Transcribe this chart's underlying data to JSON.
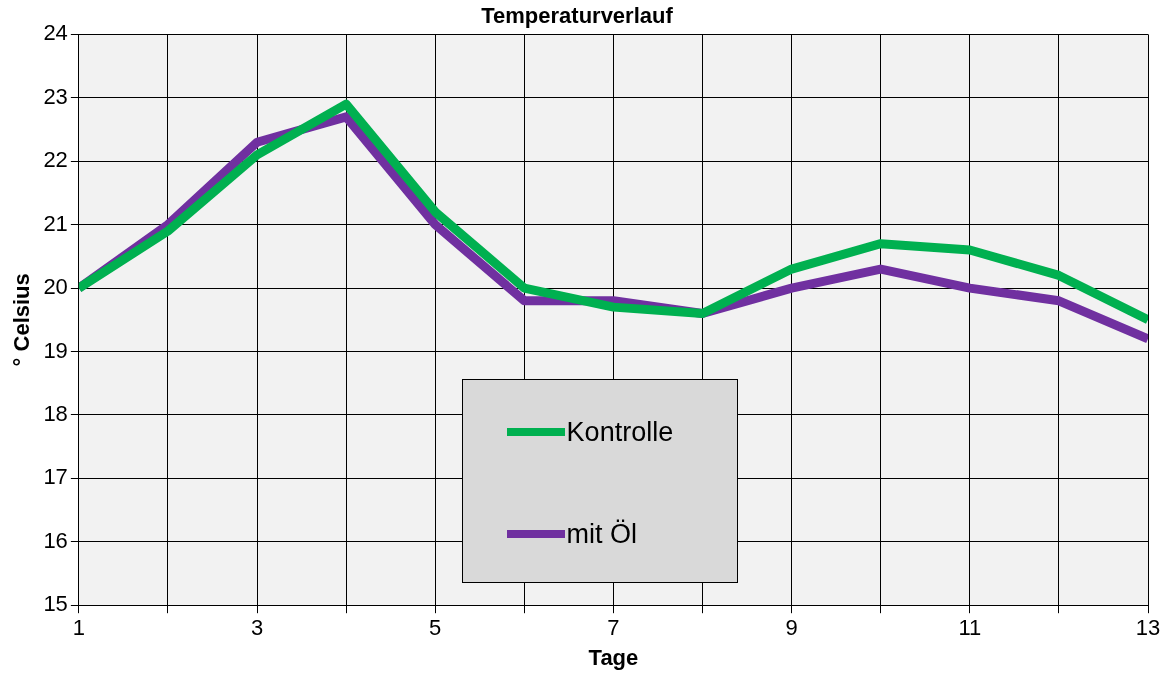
{
  "chart_data": {
    "type": "line",
    "title": "Temperaturverlauf",
    "xlabel": "Tage",
    "ylabel": "° Celsius",
    "x": [
      1,
      2,
      3,
      4,
      5,
      6,
      7,
      8,
      9,
      10,
      11,
      12,
      13
    ],
    "series": [
      {
        "name": "Kontrolle",
        "color": "#00b050",
        "values": [
          20,
          20.9,
          22.1,
          22.9,
          21.2,
          20.0,
          19.7,
          19.6,
          20.3,
          20.7,
          20.6,
          20.2,
          19.5
        ]
      },
      {
        "name": "mit Öl",
        "color": "#7030a0",
        "values": [
          20,
          21.0,
          22.3,
          22.7,
          21.0,
          19.8,
          19.8,
          19.6,
          20.0,
          20.3,
          20.0,
          19.8,
          19.2
        ]
      }
    ],
    "xlim": [
      1,
      13
    ],
    "xticks": [
      1,
      {
        "value": 2,
        "label": null
      },
      3,
      {
        "value": 4,
        "label": null
      },
      5,
      {
        "value": 6,
        "label": null
      },
      7,
      {
        "value": 8,
        "label": null
      },
      9,
      {
        "value": 10,
        "label": null
      },
      11,
      {
        "value": 12,
        "label": null
      },
      13
    ],
    "ylim": [
      15,
      24
    ],
    "yticks": [
      15,
      16,
      17,
      18,
      19,
      20,
      21,
      22,
      23,
      24
    ],
    "grid": true,
    "legend": "bottom",
    "marker": "none",
    "line_style": "solid"
  }
}
